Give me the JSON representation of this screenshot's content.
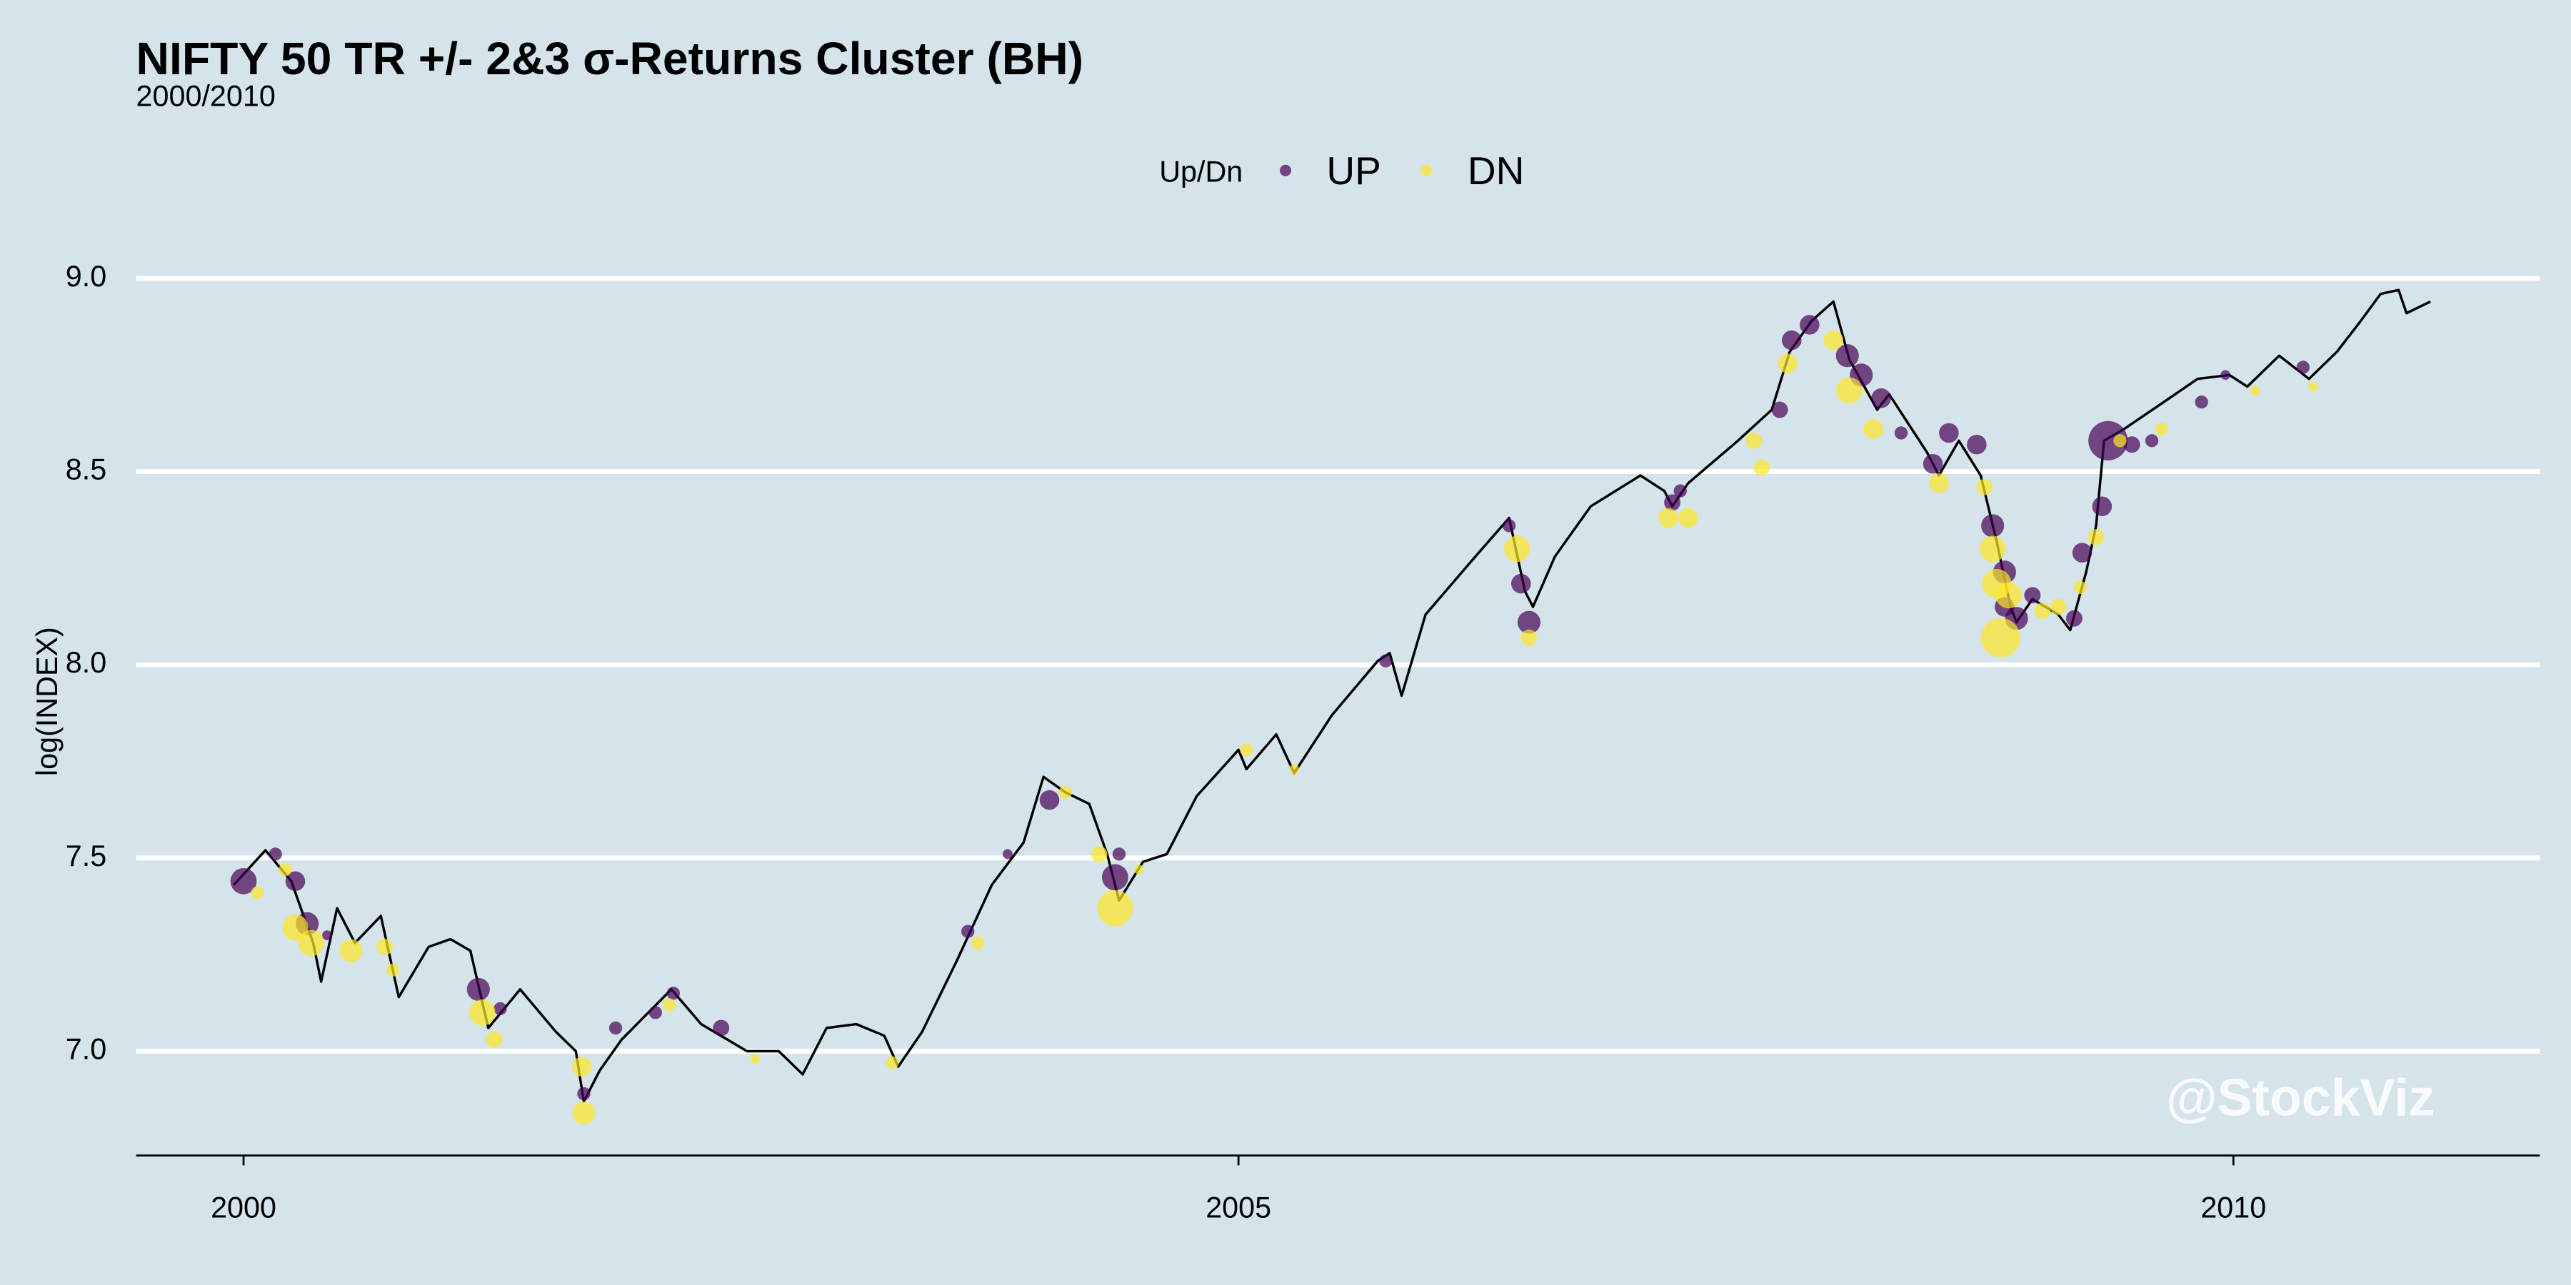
{
  "chart_data": {
    "type": "line",
    "title": "NIFTY 50 TR +/- 2&3 σ-Returns Cluster (BH)",
    "subtitle": "2000/2010",
    "y_label": "log(INDEX)",
    "legend_title": "Up/Dn",
    "annotation": "@StockViz",
    "xlim": [
      1999.46,
      2011.54
    ],
    "xticks": [
      2000,
      2005,
      2010
    ],
    "ylim": [
      6.73,
      9.08
    ],
    "yticks": [
      {
        "value": 7,
        "label": "7.0"
      },
      7.5,
      {
        "value": 8,
        "label": "8.0"
      },
      8.5,
      {
        "value": 9,
        "label": "9.0"
      }
    ],
    "grid": true,
    "line": {
      "color": "#000000",
      "x": [
        1999.95,
        2000.11,
        2000.24,
        2000.35,
        2000.39,
        2000.47,
        2000.56,
        2000.69,
        2000.78,
        2000.93,
        2001.04,
        2001.14,
        2001.23,
        2001.39,
        2001.57,
        2001.67,
        2001.71,
        2001.79,
        2001.9,
        2002.15,
        2002.3,
        2002.53,
        2002.69,
        2002.81,
        2002.93,
        2003.08,
        2003.22,
        2003.29,
        2003.41,
        2003.59,
        2003.76,
        2003.92,
        2004.02,
        2004.13,
        2004.25,
        2004.34,
        2004.4,
        2004.52,
        2004.64,
        2004.79,
        2005.0,
        2005.04,
        2005.19,
        2005.28,
        2005.47,
        2005.7,
        2005.76,
        2005.82,
        2005.94,
        2006.19,
        2006.36,
        2006.44,
        2006.48,
        2006.59,
        2006.77,
        2007.02,
        2007.14,
        2007.18,
        2007.26,
        2007.51,
        2007.68,
        2007.77,
        2007.88,
        2007.99,
        2008.07,
        2008.21,
        2008.27,
        2008.46,
        2008.52,
        2008.62,
        2008.73,
        2008.81,
        2008.88,
        2008.91,
        2008.99,
        2009.12,
        2009.18,
        2009.26,
        2009.31,
        2009.35,
        2009.45,
        2009.65,
        2009.82,
        2009.98,
        2010.07,
        2010.23,
        2010.38,
        2010.52,
        2010.64,
        2010.74,
        2010.83,
        2010.87,
        2010.99
      ],
      "values": [
        7.43,
        7.52,
        7.44,
        7.28,
        7.18,
        7.37,
        7.28,
        7.35,
        7.14,
        7.27,
        7.29,
        7.26,
        7.06,
        7.16,
        7.05,
        7.0,
        6.87,
        6.95,
        7.03,
        7.16,
        7.07,
        7.0,
        7.0,
        6.94,
        7.06,
        7.07,
        7.04,
        6.96,
        7.05,
        7.24,
        7.43,
        7.54,
        7.71,
        7.67,
        7.64,
        7.51,
        7.39,
        7.49,
        7.51,
        7.66,
        7.78,
        7.73,
        7.82,
        7.72,
        7.87,
        8.01,
        8.03,
        7.92,
        8.13,
        8.28,
        8.38,
        8.19,
        8.15,
        8.28,
        8.41,
        8.49,
        8.45,
        8.41,
        8.47,
        8.58,
        8.66,
        8.81,
        8.89,
        8.94,
        8.79,
        8.66,
        8.7,
        8.55,
        8.49,
        8.58,
        8.49,
        8.32,
        8.15,
        8.11,
        8.17,
        8.13,
        8.09,
        8.24,
        8.36,
        8.58,
        8.61,
        8.68,
        8.74,
        8.75,
        8.72,
        8.8,
        8.74,
        8.81,
        8.89,
        8.96,
        8.97,
        8.91,
        8.94
      ]
    },
    "alpha": 0.7,
    "series": [
      {
        "name": "UP",
        "color": "#440154",
        "x": [
          2000.0,
          2000.16,
          2000.26,
          2000.32,
          2000.42,
          2001.18,
          2001.29,
          2001.71,
          2001.87,
          2002.07,
          2002.16,
          2002.4,
          2003.64,
          2003.84,
          2004.05,
          2004.38,
          2004.4,
          2005.74,
          2006.36,
          2006.42,
          2006.46,
          2007.18,
          2007.22,
          2007.72,
          2007.78,
          2007.87,
          2008.06,
          2008.13,
          2008.23,
          2008.33,
          2008.49,
          2008.57,
          2008.71,
          2008.79,
          2008.85,
          2008.85,
          2008.91,
          2008.99,
          2009.2,
          2009.24,
          2009.34,
          2009.37,
          2009.49,
          2009.59,
          2009.84,
          2009.96,
          2010.35
        ],
        "values": [
          7.44,
          7.51,
          7.44,
          7.33,
          7.3,
          7.16,
          7.11,
          6.89,
          7.06,
          7.1,
          7.15,
          7.06,
          7.31,
          7.51,
          7.65,
          7.45,
          7.51,
          8.01,
          8.36,
          8.21,
          8.11,
          8.42,
          8.45,
          8.66,
          8.84,
          8.88,
          8.8,
          8.75,
          8.69,
          8.6,
          8.52,
          8.6,
          8.57,
          8.36,
          8.24,
          8.15,
          8.12,
          8.18,
          8.12,
          8.29,
          8.41,
          8.58,
          8.57,
          8.58,
          8.68,
          8.75,
          8.77
        ],
        "sizes": [
          8,
          4,
          6,
          7,
          3,
          7,
          4,
          4,
          4,
          4,
          4,
          5,
          4,
          3,
          6,
          8,
          4,
          4,
          4,
          6,
          7,
          5,
          4,
          5,
          6,
          6,
          7,
          7,
          6,
          4,
          6,
          6,
          6,
          7,
          7,
          6,
          7,
          5,
          5,
          6,
          6,
          12,
          5,
          4,
          4,
          3,
          4
        ]
      },
      {
        "name": "DN",
        "color": "#FDE725",
        "x": [
          2000.07,
          2000.21,
          2000.26,
          2000.34,
          2000.54,
          2000.71,
          2000.75,
          2001.2,
          2001.26,
          2001.7,
          2001.71,
          2002.14,
          2002.57,
          2003.26,
          2003.69,
          2004.13,
          2004.3,
          2004.38,
          2004.5,
          2005.04,
          2005.28,
          2006.4,
          2006.46,
          2007.16,
          2007.26,
          2007.59,
          2007.63,
          2007.76,
          2007.99,
          2008.07,
          2008.19,
          2008.52,
          2008.75,
          2008.79,
          2008.81,
          2008.83,
          2008.87,
          2009.04,
          2009.12,
          2009.23,
          2009.31,
          2009.43,
          2009.64,
          2010.11,
          2010.4
        ],
        "values": [
          7.41,
          7.47,
          7.32,
          7.28,
          7.26,
          7.27,
          7.21,
          7.1,
          7.03,
          6.96,
          6.84,
          7.12,
          6.98,
          6.97,
          7.28,
          7.67,
          7.51,
          7.37,
          7.47,
          7.78,
          7.73,
          8.3,
          8.07,
          8.38,
          8.38,
          8.58,
          8.51,
          8.78,
          8.84,
          8.71,
          8.61,
          8.47,
          8.46,
          8.3,
          8.21,
          8.07,
          8.18,
          8.14,
          8.15,
          8.2,
          8.33,
          8.58,
          8.61,
          8.71,
          8.72
        ],
        "sizes": [
          4,
          4,
          8,
          8,
          7,
          5,
          4,
          8,
          5,
          6,
          7,
          4,
          3,
          4,
          4,
          4,
          5,
          11,
          3,
          4,
          3,
          8,
          5,
          6,
          6,
          5,
          5,
          6,
          6,
          8,
          6,
          6,
          5,
          8,
          9,
          12,
          8,
          5,
          5,
          4,
          5,
          4,
          4,
          3,
          3
        ]
      }
    ]
  }
}
